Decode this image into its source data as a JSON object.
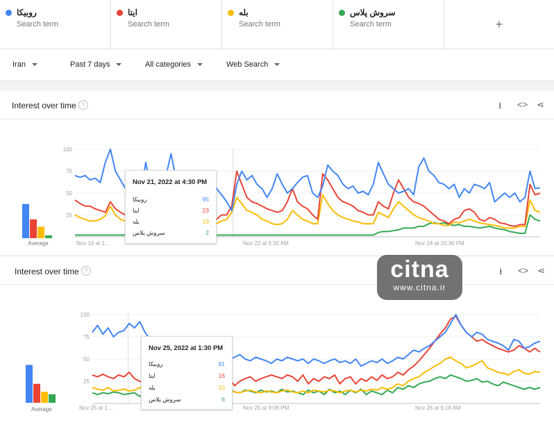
{
  "colors": {
    "blue": "#4285f4",
    "red": "#ea4335",
    "yellow": "#fbbc04",
    "green": "#34a853"
  },
  "terms": [
    {
      "name": "روبیکا",
      "sub": "Search term",
      "color": "#4285f4"
    },
    {
      "name": "ایتا",
      "sub": "Search term",
      "color": "#ea4335"
    },
    {
      "name": "بله",
      "sub": "Search term",
      "color": "#fbbc04"
    },
    {
      "name": "سروش پلاس",
      "sub": "Search term",
      "color": "#34a853"
    }
  ],
  "add_term": "+",
  "filters": {
    "region": "Iran",
    "time": "Past 7 days",
    "category": "All categories",
    "search_type": "Web Search"
  },
  "icons": {
    "help": "help-circle-icon",
    "download": "download-icon",
    "embed": "embed-code-icon",
    "share": "share-icon",
    "add": "plus-icon"
  },
  "watermark": {
    "big": "citna",
    "small": "www.citna.ir"
  },
  "chart_data": [
    {
      "type": "line",
      "title": "Interest over time",
      "ylim": [
        0,
        100
      ],
      "y_ticks": [
        "100",
        "75",
        "50",
        "25"
      ],
      "x_tick_labels": [
        "Nov 19 at 1…",
        "Nov 22 at 5:30 AM",
        "Nov 24 at 10:30 PM"
      ],
      "average_label": "Average",
      "averages": [
        60,
        33,
        20,
        5
      ],
      "series": [
        {
          "name": "روبیکا",
          "values": [
            70,
            68,
            70,
            65,
            67,
            62,
            85,
            100,
            75,
            65,
            55,
            55,
            58,
            50,
            85,
            55,
            60,
            50,
            70,
            95,
            65,
            60,
            55,
            50,
            45,
            40,
            50,
            72,
            55,
            48,
            40,
            30,
            60,
            75,
            65,
            70,
            60,
            55,
            45,
            55,
            72,
            60,
            50,
            55,
            62,
            68,
            70,
            50,
            45,
            58,
            82,
            75,
            70,
            60,
            55,
            58,
            50,
            52,
            48,
            60,
            85,
            72,
            60,
            55,
            50,
            52,
            55,
            48,
            80,
            90,
            75,
            70,
            62,
            60,
            55,
            60,
            45,
            55,
            50,
            60,
            58,
            55,
            62,
            40,
            45,
            50,
            45,
            50,
            40,
            45,
            75,
            55,
            56
          ]
        },
        {
          "name": "ایتا",
          "values": [
            42,
            38,
            35,
            35,
            32,
            30,
            28,
            40,
            32,
            28,
            25,
            22,
            22,
            28,
            40,
            30,
            28,
            22,
            25,
            23,
            22,
            21,
            25,
            32,
            28,
            22,
            18,
            15,
            20,
            25,
            25,
            35,
            75,
            60,
            45,
            40,
            38,
            35,
            32,
            30,
            28,
            30,
            40,
            55,
            40,
            35,
            32,
            25,
            20,
            72,
            65,
            55,
            45,
            40,
            38,
            35,
            30,
            28,
            25,
            25,
            40,
            35,
            32,
            50,
            65,
            55,
            45,
            40,
            38,
            35,
            30,
            25,
            20,
            18,
            15,
            20,
            22,
            30,
            32,
            28,
            20,
            18,
            22,
            20,
            16,
            15,
            13,
            12,
            14,
            14,
            60,
            48,
            50
          ]
        },
        {
          "name": "بله",
          "values": [
            25,
            22,
            20,
            18,
            18,
            20,
            24,
            35,
            25,
            20,
            18,
            17,
            17,
            20,
            25,
            22,
            20,
            17,
            18,
            19,
            17,
            17,
            18,
            22,
            20,
            17,
            15,
            13,
            15,
            18,
            20,
            28,
            45,
            38,
            30,
            28,
            25,
            20,
            18,
            15,
            14,
            15,
            20,
            30,
            25,
            20,
            18,
            15,
            15,
            48,
            38,
            30,
            25,
            22,
            20,
            18,
            17,
            15,
            15,
            15,
            28,
            25,
            22,
            32,
            40,
            35,
            30,
            25,
            22,
            20,
            18,
            15,
            15,
            13,
            13,
            17,
            16,
            18,
            20,
            18,
            16,
            15,
            14,
            13,
            12,
            10,
            10,
            10,
            12,
            12,
            42,
            30,
            28
          ]
        },
        {
          "name": "سروش پلاس",
          "values": [
            2,
            2,
            2,
            2,
            2,
            2,
            2,
            2,
            2,
            2,
            2,
            2,
            2,
            2,
            2,
            2,
            2,
            2,
            2,
            2,
            2,
            2,
            2,
            2,
            2,
            2,
            2,
            2,
            2,
            2,
            2,
            2,
            2,
            2,
            2,
            2,
            2,
            2,
            2,
            2,
            2,
            2,
            2,
            2,
            2,
            2,
            2,
            2,
            2,
            2,
            2,
            2,
            2,
            2,
            2,
            2,
            2,
            2,
            2,
            2,
            5,
            6,
            6,
            7,
            8,
            10,
            10,
            10,
            12,
            12,
            15,
            16,
            15,
            16,
            14,
            13,
            14,
            12,
            12,
            11,
            10,
            11,
            12,
            10,
            9,
            8,
            6,
            5,
            4,
            4,
            25,
            20,
            18
          ]
        }
      ],
      "tooltip": {
        "date": "Nov 21, 2022 at 4:30 PM",
        "rows": [
          {
            "name": "روبیکا",
            "value": "95"
          },
          {
            "name": "ایتا",
            "value": "23"
          },
          {
            "name": "بله",
            "value": "19"
          },
          {
            "name": "سروش پلاس",
            "value": "2"
          }
        ]
      }
    },
    {
      "type": "line",
      "title": "Interest over time",
      "ylim": [
        0,
        100
      ],
      "y_ticks": [
        "100",
        "75",
        "50",
        "25"
      ],
      "x_tick_labels": [
        "Nov 25 at 1…",
        "Nov 25 at 9:06 PM",
        "Nov 26 at 6:18 AM"
      ],
      "average_label": "Average",
      "averages": [
        62,
        31,
        18,
        14
      ],
      "series": [
        {
          "name": "روبیکا",
          "values": [
            80,
            88,
            78,
            85,
            75,
            80,
            82,
            90,
            85,
            92,
            80,
            72,
            70,
            65,
            62,
            60,
            58,
            62,
            55,
            50,
            48,
            52,
            45,
            60,
            50,
            48,
            50,
            52,
            55,
            50,
            48,
            52,
            50,
            48,
            45,
            50,
            48,
            52,
            50,
            48,
            50,
            45,
            50,
            48,
            45,
            48,
            50,
            46,
            48,
            45,
            50,
            42,
            45,
            48,
            46,
            50,
            45,
            48,
            52,
            50,
            55,
            60,
            58,
            62,
            65,
            70,
            75,
            80,
            90,
            100,
            88,
            80,
            75,
            80,
            78,
            72,
            70,
            68,
            65,
            60,
            72,
            70,
            62,
            64,
            68,
            70
          ]
        },
        {
          "name": "ایتا",
          "values": [
            32,
            30,
            33,
            30,
            28,
            32,
            30,
            35,
            28,
            25,
            22,
            25,
            28,
            25,
            22,
            25,
            28,
            22,
            25,
            20,
            18,
            22,
            25,
            20,
            22,
            25,
            28,
            20,
            25,
            28,
            30,
            25,
            28,
            30,
            32,
            30,
            28,
            32,
            30,
            25,
            32,
            22,
            28,
            25,
            30,
            28,
            32,
            22,
            28,
            30,
            22,
            28,
            25,
            30,
            26,
            32,
            28,
            30,
            35,
            32,
            38,
            42,
            48,
            55,
            62,
            70,
            78,
            85,
            95,
            98,
            88,
            80,
            75,
            70,
            72,
            68,
            65,
            62,
            60,
            58,
            60,
            65,
            62,
            58,
            62,
            58
          ]
        },
        {
          "name": "بله",
          "values": [
            18,
            16,
            15,
            18,
            14,
            15,
            16,
            14,
            15,
            18,
            16,
            14,
            15,
            14,
            12,
            14,
            13,
            12,
            14,
            12,
            13,
            12,
            14,
            12,
            13,
            15,
            14,
            13,
            12,
            14,
            15,
            13,
            12,
            14,
            13,
            12,
            14,
            15,
            13,
            12,
            14,
            12,
            15,
            14,
            13,
            15,
            14,
            12,
            14,
            15,
            13,
            15,
            14,
            16,
            15,
            18,
            16,
            18,
            22,
            20,
            25,
            28,
            30,
            35,
            38,
            42,
            45,
            50,
            52,
            48,
            45,
            40,
            42,
            45,
            48,
            40,
            38,
            35,
            34,
            32,
            36,
            38,
            34,
            33,
            36,
            35
          ]
        },
        {
          "name": "سروش پلاس",
          "values": [
            12,
            10,
            12,
            11,
            13,
            12,
            10,
            11,
            12,
            8,
            10,
            12,
            10,
            8,
            12,
            10,
            13,
            11,
            12,
            10,
            14,
            12,
            13,
            15,
            12,
            14,
            16,
            13,
            12,
            15,
            14,
            12,
            15,
            13,
            14,
            12,
            16,
            13,
            14,
            12,
            10,
            15,
            12,
            14,
            10,
            16,
            12,
            14,
            10,
            15,
            12,
            16,
            10,
            14,
            12,
            10,
            15,
            12,
            18,
            16,
            20,
            18,
            22,
            24,
            25,
            28,
            30,
            28,
            32,
            30,
            28,
            25,
            26,
            28,
            24,
            25,
            22,
            20,
            24,
            22,
            20,
            18,
            16,
            18,
            16,
            18
          ]
        }
      ],
      "tooltip": {
        "date": "Nov 25, 2022 at 1:30 PM",
        "rows": [
          {
            "name": "روبیکا",
            "value": "91"
          },
          {
            "name": "ایتا",
            "value": "16"
          },
          {
            "name": "بله",
            "value": "10"
          },
          {
            "name": "سروش پلاس",
            "value": "6"
          }
        ]
      }
    }
  ]
}
